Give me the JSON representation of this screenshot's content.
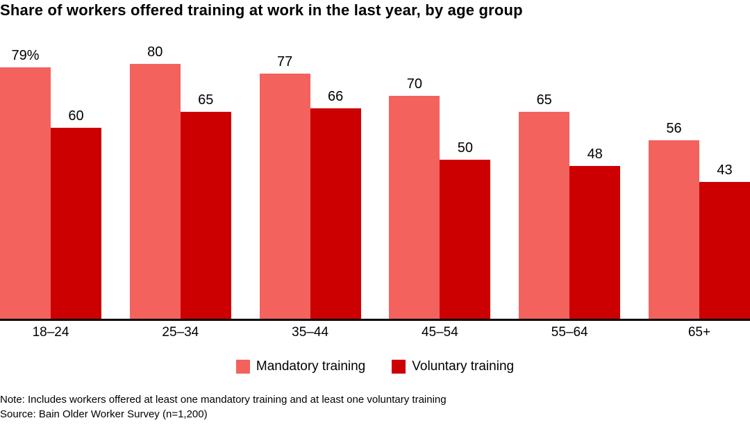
{
  "chart_data": {
    "type": "bar",
    "title": "Share of workers offered training at work in the last year, by age group",
    "categories": [
      "18–24",
      "25–34",
      "35–44",
      "45–54",
      "55–64",
      "65+"
    ],
    "series": [
      {
        "name": "Mandatory training",
        "color": "#f4625d",
        "values": [
          79,
          80,
          77,
          70,
          65,
          56
        ],
        "labels": [
          "79%",
          "80",
          "77",
          "70",
          "65",
          "56"
        ]
      },
      {
        "name": "Voluntary training",
        "color": "#cc0000",
        "values": [
          60,
          65,
          66,
          50,
          48,
          43
        ],
        "labels": [
          "60",
          "65",
          "66",
          "50",
          "48",
          "43"
        ]
      }
    ],
    "ylim": [
      0,
      80
    ],
    "grid": false,
    "legend_position": "bottom",
    "note": "Note: Includes workers offered at least one mandatory training and at least one voluntary training",
    "source": "Source: Bain Older Worker Survey (n=1,200)"
  }
}
